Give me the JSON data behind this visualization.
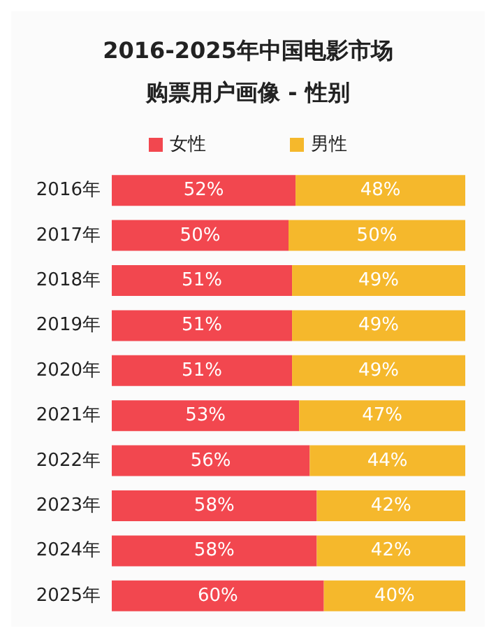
{
  "chart_data": {
    "type": "bar",
    "orientation": "horizontal",
    "stacked": true,
    "title": "2016-2025年中国电影市场购票用户画像 - 性别",
    "categories": [
      "2016年",
      "2017年",
      "2018年",
      "2019年",
      "2020年",
      "2021年",
      "2022年",
      "2023年",
      "2024年",
      "2025年"
    ],
    "series": [
      {
        "name": "女性",
        "color": "#f2474f",
        "values": [
          52,
          50,
          51,
          51,
          51,
          53,
          56,
          58,
          58,
          60
        ],
        "value_labels": [
          "52%",
          "50%",
          "51%",
          "51%",
          "51%",
          "53%",
          "56%",
          "58%",
          "58%",
          "60%"
        ]
      },
      {
        "name": "男性",
        "color": "#f5b82c",
        "values": [
          48,
          50,
          49,
          49,
          49,
          47,
          44,
          42,
          42,
          40
        ],
        "value_labels": [
          "48%",
          "50%",
          "49%",
          "49%",
          "49%",
          "47%",
          "44%",
          "42%",
          "42%",
          "40%"
        ]
      }
    ],
    "legend": "top",
    "tick_labels": "y"
  }
}
